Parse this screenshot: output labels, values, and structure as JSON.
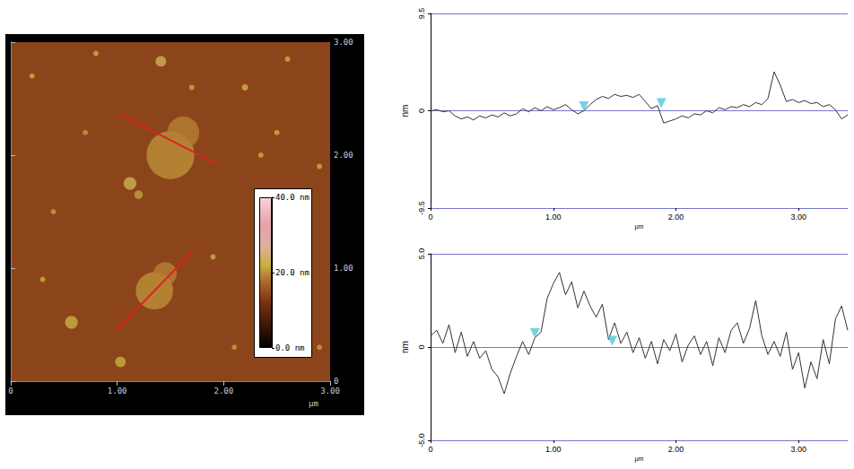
{
  "chart_data": [
    {
      "type": "image",
      "x_label": "µm",
      "xlim": [
        0,
        3
      ],
      "ylim": [
        0,
        3
      ],
      "xticks": [
        0,
        {
          "value": 1,
          "label": "1.00"
        },
        {
          "value": 2,
          "label": "2.00"
        },
        {
          "value": 3,
          "label": "3.00"
        }
      ],
      "yticks": [
        0,
        {
          "value": 1,
          "label": "1.00"
        },
        {
          "value": 2,
          "label": "2.00"
        },
        {
          "value": 3,
          "label": "3.00"
        }
      ],
      "colorbar": {
        "range": [
          0,
          40
        ],
        "ticks": [
          {
            "value": 0,
            "label": "0.0 nm"
          },
          {
            "value": 20,
            "label": "20.0 nm"
          },
          {
            "value": 40,
            "label": "40.0 nm"
          }
        ]
      },
      "ground_height": 14,
      "series": [
        {
          "type": "scatter",
          "marker": "circle",
          "x": [
            1.5,
            1.62,
            1.35,
            1.45,
            1.12,
            1.41,
            0.57,
            1.03,
            1.2,
            0.2,
            0.4,
            0.8,
            2.2,
            2.5,
            2.9,
            2.6,
            0.3,
            2.1,
            1.9,
            2.9,
            0.7,
            2.35,
            1.7
          ],
          "y": [
            2.0,
            2.2,
            0.8,
            0.95,
            1.75,
            2.83,
            0.52,
            0.17,
            1.65,
            2.7,
            1.5,
            2.9,
            2.6,
            2.2,
            0.3,
            2.85,
            0.9,
            0.3,
            1.1,
            1.9,
            2.2,
            2.0,
            2.6
          ],
          "diameter": [
            0.45,
            0.3,
            0.35,
            0.22,
            0.12,
            0.1,
            0.12,
            0.1,
            0.08,
            0.05,
            0.05,
            0.05,
            0.06,
            0.05,
            0.05,
            0.05,
            0.05,
            0.05,
            0.05,
            0.05,
            0.05,
            0.05,
            0.05
          ],
          "height": [
            20,
            19,
            20,
            19,
            23,
            23,
            22,
            22,
            21,
            22,
            21,
            22,
            23,
            22,
            21,
            22,
            22,
            21,
            22,
            22,
            21,
            22,
            22
          ]
        },
        {
          "type": "line",
          "color": "#e02020",
          "x": [
            1.03,
            1.92
          ],
          "y": [
            2.36,
            1.93
          ]
        },
        {
          "type": "line",
          "color": "#e02020",
          "x": [
            0.99,
            1.71
          ],
          "y": [
            0.45,
            1.15
          ]
        }
      ]
    },
    {
      "type": "line",
      "x_label": "µm",
      "y_label": "nm",
      "xlim": [
        0,
        3.4
      ],
      "ylim": [
        -9.5,
        9.5
      ],
      "xticks": [
        0,
        {
          "value": 1,
          "label": "1.00"
        },
        {
          "value": 2,
          "label": "2.00"
        },
        {
          "value": 3,
          "label": "3.00"
        }
      ],
      "yticks": [
        -9.5,
        0,
        9.5
      ],
      "grid": true,
      "series": [
        {
          "type": "line",
          "color": "#333333",
          "x": [
            0,
            0.05,
            0.1,
            0.15,
            0.2,
            0.25,
            0.3,
            0.35,
            0.4,
            0.45,
            0.5,
            0.55,
            0.6,
            0.65,
            0.7,
            0.75,
            0.8,
            0.85,
            0.9,
            0.95,
            1.0,
            1.05,
            1.1,
            1.15,
            1.2,
            1.25,
            1.3,
            1.35,
            1.4,
            1.45,
            1.5,
            1.55,
            1.6,
            1.65,
            1.7,
            1.75,
            1.8,
            1.85,
            1.9,
            1.95,
            2.0,
            2.05,
            2.1,
            2.15,
            2.2,
            2.25,
            2.3,
            2.35,
            2.4,
            2.45,
            2.5,
            2.55,
            2.6,
            2.65,
            2.7,
            2.75,
            2.8,
            2.85,
            2.9,
            2.95,
            3.0,
            3.05,
            3.1,
            3.15,
            3.2,
            3.25,
            3.3,
            3.35,
            3.4
          ],
          "values": [
            0,
            0.1,
            -0.1,
            0,
            -0.5,
            -0.8,
            -0.6,
            -0.9,
            -0.5,
            -0.7,
            -0.4,
            -0.6,
            -0.2,
            -0.5,
            -0.3,
            0.2,
            -0.1,
            0.3,
            0,
            0.4,
            0.1,
            0.3,
            0.6,
            0.1,
            -0.3,
            0,
            0.6,
            1.1,
            1.4,
            1.2,
            1.6,
            1.4,
            1.5,
            1.3,
            1.6,
            0.9,
            0.2,
            0.5,
            -1.2,
            -1.0,
            -0.8,
            -0.5,
            -0.7,
            -0.3,
            -0.4,
            0,
            -0.2,
            0.3,
            0.1,
            0.4,
            0.3,
            0.6,
            0.4,
            0.8,
            0.6,
            1.2,
            3.8,
            2.5,
            0.9,
            1.1,
            0.8,
            1.0,
            0.7,
            0.8,
            0.4,
            0.6,
            0.1,
            -0.8,
            -0.4
          ]
        },
        {
          "type": "scatter",
          "marker": "triangle",
          "color": "#4fc8d8",
          "x": [
            1.25,
            1.88
          ],
          "values": [
            0,
            0.3
          ]
        }
      ]
    },
    {
      "type": "line",
      "x_label": "µm",
      "y_label": "nm",
      "xlim": [
        0,
        3.4
      ],
      "ylim": [
        -5,
        5
      ],
      "xticks": [
        0,
        {
          "value": 1,
          "label": "1.00"
        },
        {
          "value": 2,
          "label": "2.00"
        },
        {
          "value": 3,
          "label": "3.00"
        }
      ],
      "yticks": [
        {
          "value": -5,
          "label": "-5.0"
        },
        0,
        {
          "value": 5,
          "label": "5.0"
        }
      ],
      "grid": true,
      "series": [
        {
          "type": "line",
          "color": "#333333",
          "x": [
            0,
            0.05,
            0.1,
            0.15,
            0.2,
            0.25,
            0.3,
            0.35,
            0.4,
            0.45,
            0.5,
            0.55,
            0.6,
            0.65,
            0.7,
            0.75,
            0.8,
            0.85,
            0.9,
            0.95,
            1.0,
            1.05,
            1.1,
            1.15,
            1.2,
            1.25,
            1.3,
            1.35,
            1.4,
            1.45,
            1.5,
            1.55,
            1.6,
            1.65,
            1.7,
            1.75,
            1.8,
            1.85,
            1.9,
            1.95,
            2.0,
            2.05,
            2.1,
            2.15,
            2.2,
            2.25,
            2.3,
            2.35,
            2.4,
            2.45,
            2.5,
            2.55,
            2.6,
            2.65,
            2.7,
            2.75,
            2.8,
            2.85,
            2.9,
            2.95,
            3.0,
            3.05,
            3.1,
            3.15,
            3.2,
            3.25,
            3.3,
            3.35,
            3.4
          ],
          "values": [
            0.6,
            0.9,
            0.2,
            1.2,
            -0.3,
            0.8,
            -0.5,
            0.3,
            -0.6,
            -0.2,
            -1.2,
            -1.6,
            -2.5,
            -1.4,
            -0.5,
            0.3,
            -0.4,
            0.5,
            0.8,
            2.6,
            3.4,
            4.0,
            2.8,
            3.5,
            2.1,
            3.0,
            2.2,
            1.6,
            2.3,
            0.4,
            1.3,
            0.2,
            0.8,
            -0.3,
            0.5,
            -0.6,
            0.3,
            -0.9,
            0.4,
            -0.2,
            0.7,
            -0.8,
            0.1,
            0.6,
            -0.4,
            0.3,
            -1.0,
            0.5,
            -0.3,
            0.9,
            1.3,
            0.2,
            1.0,
            2.5,
            0.6,
            -0.4,
            0.3,
            -0.5,
            0.8,
            -1.2,
            -0.3,
            -2.2,
            -0.8,
            -1.7,
            0.4,
            -0.9,
            1.5,
            2.2,
            0.9
          ]
        },
        {
          "type": "scatter",
          "marker": "triangle",
          "color": "#4fc8d8",
          "x": [
            0.85,
            1.48
          ],
          "values": [
            0.5,
            0.1
          ]
        }
      ]
    }
  ]
}
